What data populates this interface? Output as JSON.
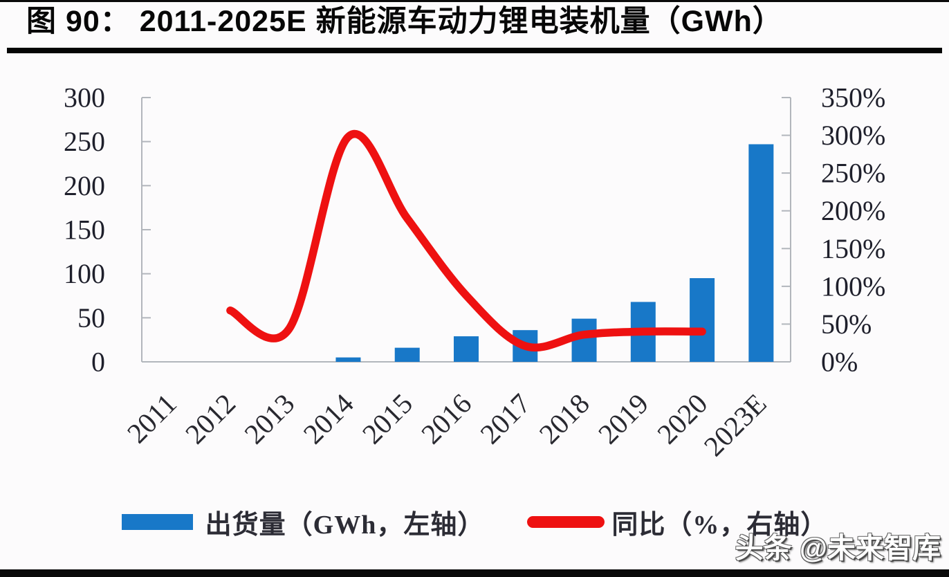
{
  "figure": {
    "title": "图 90： 2011-2025E 新能源车动力锂电装机量（GWh）",
    "watermark": "头条 @未来智库"
  },
  "legend": {
    "bar": {
      "label": "出货量（GWh，左轴）",
      "color": "#1878c8"
    },
    "line": {
      "label": "同比（%，右轴）",
      "color": "#ee1111"
    }
  },
  "chart_data": {
    "type": "combo-bar-line",
    "title": "图 90：2011-2025E 新能源车动力锂电装机量（GWh）",
    "categories": [
      "2011",
      "2012",
      "2013",
      "2014",
      "2015",
      "2016",
      "2017",
      "2018",
      "2019",
      "2020",
      "2023E"
    ],
    "series": [
      {
        "name": "出货量（GWh，左轴）",
        "type": "bar",
        "axis": "left",
        "color": "#1878c8",
        "values": [
          0,
          0,
          0,
          5,
          16,
          29,
          36,
          49,
          68,
          95,
          247
        ]
      },
      {
        "name": "同比（%，右轴）",
        "type": "line",
        "axis": "right",
        "color": "#ee1111",
        "smooth": true,
        "values": [
          null,
          68,
          44,
          298,
          190,
          88,
          21,
          36,
          40,
          40,
          null
        ]
      }
    ],
    "left_axis": {
      "min": 0,
      "max": 300,
      "step": 50,
      "tick_labels": [
        "0",
        "50",
        "100",
        "150",
        "200",
        "250",
        "300"
      ]
    },
    "right_axis": {
      "min": 0,
      "max": 350,
      "step": 50,
      "tick_labels": [
        "0%",
        "50%",
        "100%",
        "150%",
        "200%",
        "250%",
        "300%",
        "350%"
      ]
    },
    "grid": false,
    "legend_position": "bottom",
    "axis_color": "#b2b6bc",
    "tick_label_color": "#1e1f2b",
    "x_label_color": "#28282f",
    "x_label_rotation": -45
  }
}
